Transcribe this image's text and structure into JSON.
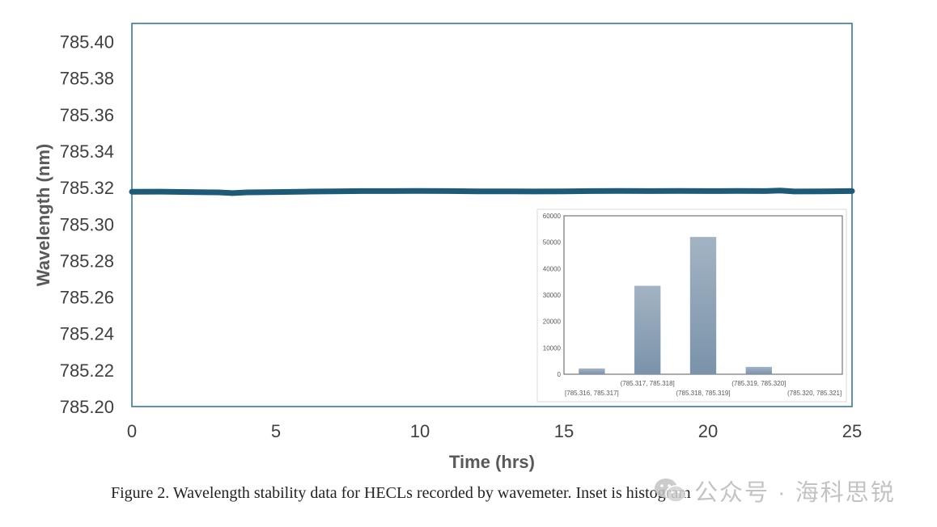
{
  "chart_data": [
    {
      "type": "line",
      "xlabel": "Time (hrs)",
      "ylabel": "Wavelength (nm)",
      "xlim": [
        0,
        25
      ],
      "ylim": [
        785.2,
        785.41
      ],
      "x_ticks": [
        0,
        5,
        10,
        15,
        20,
        25
      ],
      "y_ticks": [
        "785.20",
        "785.22",
        "785.24",
        "785.26",
        "785.28",
        "785.30",
        "785.32",
        "785.34",
        "785.36",
        "785.38",
        "785.40"
      ],
      "grid": false,
      "series_color": "#1d5a78",
      "series": [
        {
          "x": [
            0,
            1,
            2,
            3,
            3.5,
            4,
            5,
            6,
            7,
            8,
            9,
            10,
            11,
            12,
            13,
            14,
            15,
            16,
            17,
            18,
            19,
            20,
            21,
            22,
            22.5,
            23,
            24,
            25
          ],
          "values": [
            785.3177,
            785.3178,
            785.3176,
            785.3174,
            785.317,
            785.3174,
            785.3176,
            785.3178,
            785.318,
            785.3181,
            785.3181,
            785.3182,
            785.3181,
            785.318,
            785.318,
            785.3179,
            785.318,
            785.3181,
            785.3182,
            785.3181,
            785.3182,
            785.3181,
            785.3182,
            785.3181,
            785.3184,
            785.3179,
            785.318,
            785.3181
          ]
        }
      ]
    },
    {
      "type": "bar",
      "categories": [
        "[785.316, 785.317]",
        "(785.317, 785.318]",
        "(785.318, 785.319]",
        "(785.319, 785.320]",
        "(785.320, 785.321]"
      ],
      "values": [
        2200,
        33500,
        52000,
        2800,
        0
      ],
      "ylim": [
        0,
        60000
      ],
      "y_ticks": [
        "0",
        "10000",
        "20000",
        "30000",
        "40000",
        "50000",
        "60000"
      ],
      "bar_color": "#7f97ae"
    }
  ],
  "caption": "Figure 2. Wavelength stability data for HECLs recorded by wavemeter. Inset is histogram",
  "watermark": "公众号 · 海科思锐"
}
